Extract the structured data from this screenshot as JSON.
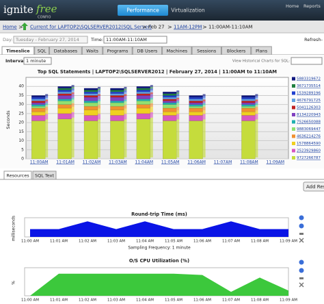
{
  "header": {
    "logo": "ignite",
    "logo_accent": "free",
    "logo_sub": "CONFIO",
    "tabs": [
      "Performance",
      "Virtualization"
    ],
    "links": [
      "Home",
      "Reports"
    ]
  },
  "breadcrumb": [
    "Home",
    "Current for LAPTOP2\\SQLSERVER2012(SQL Server)",
    "Feb 27",
    "11AM-12PM",
    "11:00AM-11:10AM"
  ],
  "controls": {
    "day_label": "Day:",
    "day": "Tuesday - February 27, 2014",
    "time_label": "Time:",
    "time": "11:00AM-11:10AM",
    "refresh": "Refresh-"
  },
  "tabs": [
    "Timeslice",
    "SQL",
    "Databases",
    "Waits",
    "Programs",
    "DB Users",
    "Machines",
    "Sessions",
    "Blockers",
    "Plans"
  ],
  "interval": {
    "label": "Interval:",
    "value": "1 minute",
    "historical": "View Historical Charts for SQL:"
  },
  "sql_chart": {
    "type": "bar",
    "stacked": true,
    "title": "Top SQL Statements  |  LAPTOP2\\SQLSERVER2012  |  February 27, 2014  |  11:00AM to 11:10AM",
    "y_label": "Seconds",
    "categories": [
      "11:00AM",
      "11:01AM",
      "11:02AM",
      "11:03AM",
      "11:04AM",
      "11:05AM",
      "11:06AM",
      "11:07AM",
      "11:08AM",
      "11:09AM"
    ],
    "ylim": [
      0,
      45
    ],
    "yticks": [
      0,
      5,
      10,
      15,
      20,
      25,
      30,
      35,
      40
    ],
    "grid": true,
    "series": [
      {
        "name": "9727266787",
        "color": "#c5dc3c",
        "values": [
          21,
          22,
          21,
          21,
          22,
          21,
          21,
          0,
          21,
          0
        ]
      },
      {
        "name": "2523929860",
        "color": "#d856c0",
        "values": [
          3,
          3,
          3,
          3,
          3,
          3,
          3,
          0,
          3,
          0
        ]
      },
      {
        "name": "1578864590",
        "color": "#f0d020",
        "values": [
          2,
          3,
          3,
          3,
          3,
          2,
          2,
          0,
          2,
          0
        ]
      },
      {
        "name": "4636214276",
        "color": "#f09030",
        "values": [
          2,
          2,
          2,
          2,
          2,
          2,
          2,
          0,
          2,
          0
        ]
      },
      {
        "name": "9883069447",
        "color": "#90e070",
        "values": [
          1,
          2,
          2,
          2,
          2,
          2,
          1,
          0,
          1,
          0
        ]
      },
      {
        "name": "7526650088",
        "color": "#20b0b0",
        "values": [
          1,
          1,
          1,
          1,
          1,
          1,
          1,
          0,
          1,
          0
        ]
      },
      {
        "name": "8134220943",
        "color": "#8040c0",
        "values": [
          1,
          2,
          2,
          2,
          2,
          1,
          1,
          0,
          1,
          0
        ]
      },
      {
        "name": "5041126303",
        "color": "#c02020",
        "values": [
          1,
          1,
          1,
          1,
          1,
          1,
          1,
          0,
          1,
          0
        ]
      },
      {
        "name": "4676791725",
        "color": "#60a0e0",
        "values": [
          1,
          1,
          1,
          1,
          1,
          1,
          1,
          0,
          1,
          0
        ]
      },
      {
        "name": "1539289196",
        "color": "#2040d0",
        "values": [
          1,
          1,
          1,
          1,
          1,
          1,
          1,
          0,
          1,
          0
        ]
      },
      {
        "name": "3671735514",
        "color": "#208040",
        "values": [
          0,
          1,
          1,
          1,
          1,
          1,
          0,
          0,
          0,
          0
        ]
      },
      {
        "name": "5883319672",
        "color": "#101880",
        "values": [
          1,
          1,
          1,
          1,
          1,
          1,
          1,
          0,
          1,
          0
        ]
      }
    ]
  },
  "subtabs": [
    "Resources",
    "SQL Text"
  ],
  "add_button": "Add Res",
  "roundtrip": {
    "type": "area",
    "title": "Round-trip Time (ms)",
    "y_label": "milliseconds",
    "x_label": "Sampling Frequency: 1 minute",
    "color": "#0a14e6",
    "categories": [
      "11:00 AM",
      "11:01 AM",
      "11:02 AM",
      "11:03 AM",
      "11:04 AM",
      "11:05 AM",
      "11:06 AM",
      "11:07 AM",
      "11:08 AM",
      "11:09 AM"
    ],
    "values": [
      1,
      1,
      2,
      1,
      2,
      1,
      1,
      2,
      1,
      1
    ],
    "ylim": [
      0,
      2.2
    ]
  },
  "cpu": {
    "type": "area",
    "title": "O/S CPU Utilization (%)",
    "y_label": "%",
    "color": "#3cc83c",
    "categories": [
      "11:00 AM",
      "11:01 AM",
      "11:02 AM",
      "11:03 AM",
      "11:04 AM",
      "11:05 AM",
      "11:06 AM",
      "11:07 AM",
      "11:08 AM",
      "11:09 AM"
    ],
    "values": [
      0,
      85,
      85,
      85,
      85,
      85,
      80,
      15,
      70,
      20
    ],
    "ylim": [
      0,
      100
    ]
  }
}
